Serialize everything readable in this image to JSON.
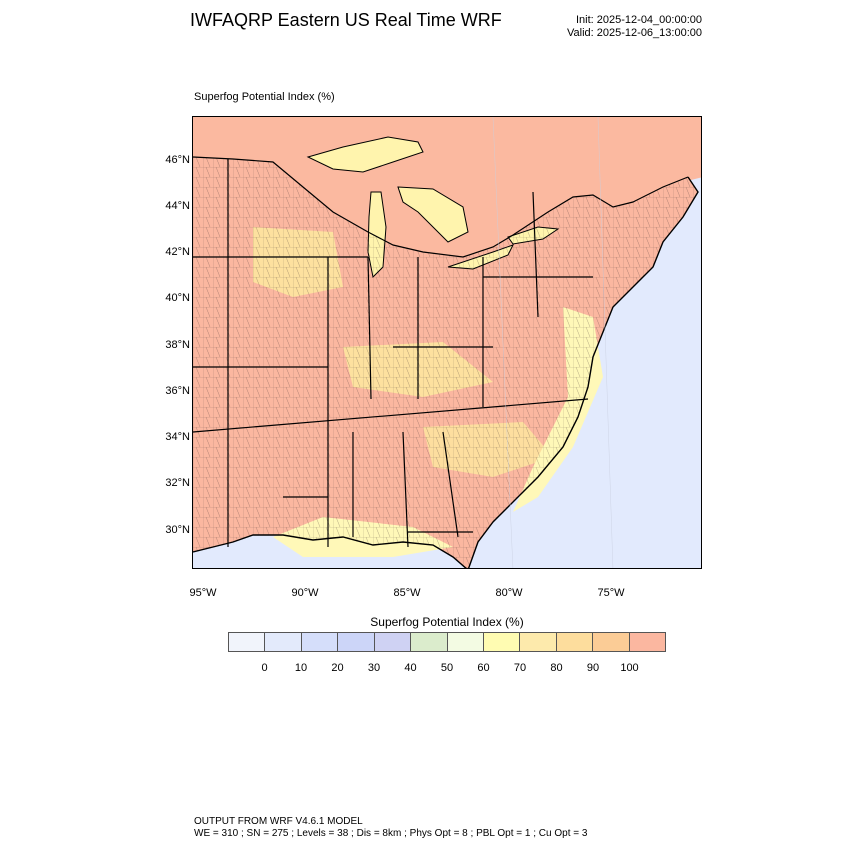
{
  "header": {
    "title": "IWFAQRP Eastern US Real Time WRF",
    "init": "Init: 2025-12-04_00:00:00",
    "valid": "Valid: 2025-12-06_13:00:00"
  },
  "map": {
    "field_label": "Superfog Potential Index   (%)",
    "lat_labels": [
      "46°N",
      "44°N",
      "42°N",
      "40°N",
      "38°N",
      "36°N",
      "34°N",
      "32°N",
      "30°N"
    ],
    "lon_labels": [
      "95°W",
      "90°W",
      "85°W",
      "80°W",
      "75°W"
    ],
    "features": [
      "state-boundaries",
      "county-boundaries",
      "great-lakes",
      "coastline"
    ],
    "colors": {
      "land_high": "#fbb7a0",
      "land_mid": "#fde59f",
      "land_low": "#fff8b8",
      "ocean": "#e2eafd",
      "lake": "#fff4ad",
      "canada": "#fbb9a0"
    }
  },
  "legend": {
    "title": "Superfog Potential Index  (%)",
    "ticks": [
      "0",
      "10",
      "20",
      "30",
      "40",
      "50",
      "60",
      "70",
      "80",
      "90",
      "100"
    ],
    "colors": [
      "#f1f4fb",
      "#e3eafb",
      "#d5defa",
      "#ccd5f8",
      "#cfd2f3",
      "#dbeccc",
      "#f3fbe3",
      "#fffcb2",
      "#fdeaac",
      "#fddd9d",
      "#fbcc96",
      "#fbb7a0"
    ]
  },
  "footer": {
    "line1": "OUTPUT FROM WRF V4.6.1 MODEL",
    "line2": "WE = 310 ; SN = 275 ; Levels = 38 ; Dis = 8km ; Phys Opt = 8 ; PBL Opt = 1 ; Cu Opt = 3"
  }
}
